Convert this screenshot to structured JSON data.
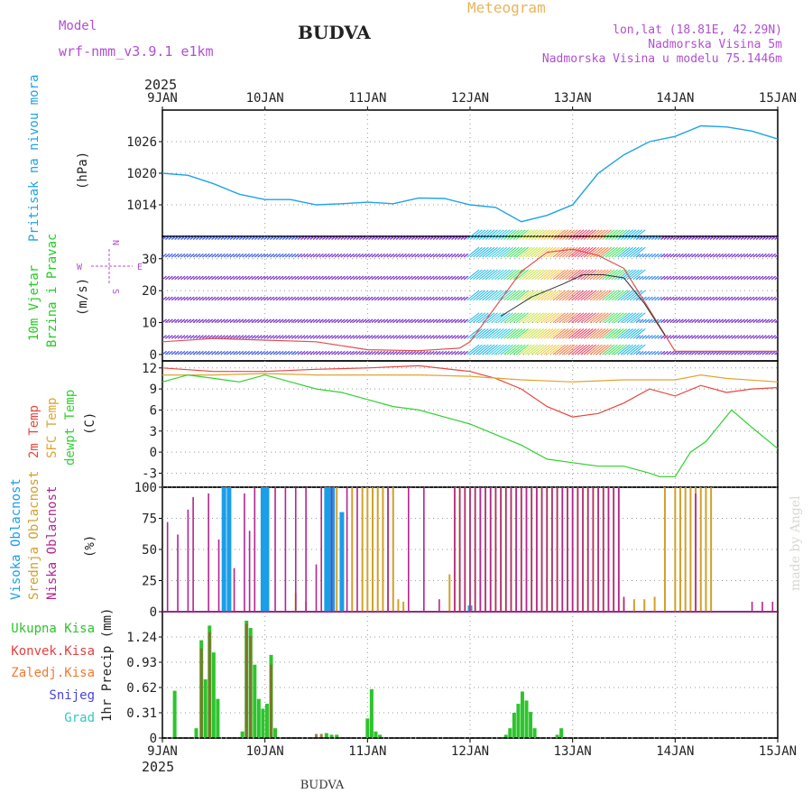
{
  "header": {
    "station": "BUDVA",
    "footer_station": "BUDVA",
    "product": "Meteogram",
    "model_label": "Model",
    "model_name": "wrf-nmm_v3.9.1 e1km",
    "coords": "lon,lat (18.81E, 42.29N)",
    "elevation": "Nadmorska Visina 5m",
    "model_elevation": "Nadmorska Visina u modelu 75.1446m",
    "watermark": "made by Angel",
    "year_top": "2025",
    "year_bottom": "2025"
  },
  "colors": {
    "pressure": "#1fa3e6",
    "temp2m": "#e8463c",
    "sfc": "#e0a431",
    "dewpt": "#2fd22f",
    "visoka": "#1a9ee8",
    "srednja": "#d2a02a",
    "niska": "#b3258f",
    "ukupna": "#2dc42d",
    "konvek": "#e34040",
    "zaledj": "#f07a30",
    "snijeg": "#4545dd",
    "grad": "#33c8c0",
    "model_text": "#b04fd0",
    "meteogram_text": "#e8b45a"
  },
  "chart_data": [
    {
      "id": "pressure",
      "type": "line",
      "ylabels": [
        "Pritisak na nivou mora",
        "(hPa)"
      ],
      "ylim": [
        1008,
        1032
      ],
      "yticks": [
        "1014",
        "1020",
        "1026"
      ],
      "xticks": [
        "9JAN",
        "10JAN",
        "11JAN",
        "12JAN",
        "13JAN",
        "14JAN",
        "15JAN"
      ],
      "x_days": [
        0,
        0.25,
        0.5,
        0.75,
        1.0,
        1.25,
        1.5,
        1.75,
        2.0,
        2.25,
        2.5,
        2.75,
        3.0,
        3.25,
        3.5,
        3.75,
        4.0,
        4.25,
        4.5,
        4.75,
        5.0,
        5.25,
        5.5,
        5.75,
        6.0
      ],
      "values": [
        1020,
        1019.6,
        1018,
        1016,
        1015,
        1015,
        1014,
        1014.2,
        1014.5,
        1014.2,
        1015.3,
        1015.2,
        1014,
        1013.5,
        1010.8,
        1012,
        1014,
        1020,
        1023.5,
        1026,
        1027,
        1029,
        1028.8,
        1028,
        1026.5
      ]
    },
    {
      "id": "wind",
      "type": "line",
      "ylabels": [
        "10m Vjetar",
        "Brzina i Pravac",
        "(m/s)"
      ],
      "compass": [
        "W",
        "E",
        "N",
        "S"
      ],
      "ylim": [
        -2,
        37
      ],
      "yticks": [
        "0",
        "10",
        "20",
        "30"
      ],
      "level_heights": [
        0,
        5,
        10,
        17,
        23.5,
        30.5,
        36
      ],
      "series": [
        {
          "name": "speed",
          "x_days": [
            0,
            0.5,
            1.0,
            1.5,
            2.0,
            2.5,
            2.9,
            3.0,
            3.25,
            3.5,
            3.75,
            4.0,
            4.25,
            4.5,
            4.75,
            5.0,
            5.5,
            6.0
          ],
          "values": [
            4,
            5,
            4.5,
            4,
            1.5,
            1.2,
            2,
            4,
            15,
            26,
            32,
            33,
            31,
            27,
            14,
            1,
            1,
            1
          ]
        },
        {
          "name": "gust",
          "x_days": [
            3.3,
            3.6,
            3.9,
            4.1,
            4.3,
            4.5,
            4.7,
            4.9
          ],
          "values": [
            12,
            18,
            22,
            25,
            25,
            24,
            16,
            6
          ]
        }
      ]
    },
    {
      "id": "temperature",
      "type": "line",
      "ylabels": [
        "2m Temp",
        "SFC Temp",
        "dewpt Temp",
        "(C)"
      ],
      "ylim": [
        -5,
        13
      ],
      "yticks": [
        "-3",
        "0",
        "3",
        "6",
        "9",
        "12"
      ],
      "series": [
        {
          "name": "2m Temp",
          "x_days": [
            0,
            0.5,
            1.0,
            1.5,
            2.0,
            2.5,
            3.0,
            3.25,
            3.5,
            3.75,
            4.0,
            4.25,
            4.5,
            4.75,
            5.0,
            5.25,
            5.5,
            5.75,
            6.0
          ],
          "values": [
            12,
            11.5,
            11.5,
            11.8,
            12,
            12.3,
            11.5,
            10.5,
            9,
            6.5,
            5,
            5.5,
            7,
            9,
            8,
            9.5,
            8.5,
            9,
            9.2
          ]
        },
        {
          "name": "SFC Temp",
          "x_days": [
            0,
            0.5,
            1.0,
            1.5,
            2.0,
            2.5,
            3.0,
            3.5,
            4.0,
            4.5,
            5.0,
            5.25,
            5.5,
            6.0
          ],
          "values": [
            11,
            11,
            11.2,
            11,
            11,
            11,
            10.8,
            10.3,
            10,
            10.3,
            10.3,
            11,
            10.5,
            10
          ]
        },
        {
          "name": "dewpt Temp",
          "x_days": [
            0,
            0.25,
            0.5,
            0.75,
            1.0,
            1.25,
            1.5,
            1.75,
            2.0,
            2.25,
            2.5,
            2.75,
            3.0,
            3.25,
            3.5,
            3.75,
            4.0,
            4.25,
            4.5,
            4.75,
            4.85,
            5.0,
            5.15,
            5.3,
            5.55,
            5.75,
            6.0
          ],
          "values": [
            10,
            11,
            10.5,
            10,
            11,
            10,
            9,
            8.5,
            7.5,
            6.5,
            6,
            5,
            4,
            2.5,
            1,
            -1,
            -1.5,
            -2,
            -2,
            -3,
            -3.5,
            -3.5,
            0,
            1.5,
            6,
            3.5,
            0.5
          ]
        }
      ]
    },
    {
      "id": "clouds",
      "type": "bar",
      "ylabels": [
        "Visoka Oblacnost",
        "Srednja Oblacnost",
        "Niska Oblacnost",
        "(%)"
      ],
      "ylim": [
        0,
        100
      ],
      "yticks": [
        "0",
        "25",
        "50",
        "75",
        "100"
      ],
      "series": [
        {
          "name": "Visoka Oblacnost",
          "x_days": [
            0.6,
            0.65,
            0.98,
            1.02,
            1.6,
            1.62,
            1.66,
            1.75,
            3.0
          ],
          "values": [
            100,
            100,
            100,
            100,
            100,
            100,
            100,
            80,
            5
          ]
        },
        {
          "name": "Srednja Oblacnost",
          "x_days": [
            1.3,
            1.4,
            1.7,
            1.85,
            1.95,
            2.0,
            2.05,
            2.1,
            2.15,
            2.2,
            2.25,
            2.3,
            2.35,
            2.8,
            2.85,
            2.9,
            2.95,
            3.0,
            3.05,
            3.1,
            3.15,
            3.2,
            3.25,
            3.3,
            3.35,
            3.4,
            3.45,
            3.5,
            3.55,
            3.6,
            3.65,
            3.7,
            3.75,
            3.8,
            3.85,
            3.9,
            3.95,
            4.0,
            4.05,
            4.1,
            4.15,
            4.2,
            4.25,
            4.3,
            4.35,
            4.4,
            4.45,
            4.5,
            4.6,
            4.7,
            4.8,
            4.9,
            5.0,
            5.05,
            5.1,
            5.15,
            5.2,
            5.25,
            5.3,
            5.35
          ],
          "values": [
            15,
            8,
            100,
            100,
            100,
            100,
            100,
            100,
            100,
            100,
            100,
            10,
            8,
            30,
            100,
            100,
            100,
            100,
            100,
            100,
            100,
            100,
            100,
            100,
            100,
            100,
            100,
            100,
            100,
            100,
            100,
            100,
            100,
            100,
            100,
            100,
            100,
            100,
            100,
            100,
            100,
            100,
            100,
            100,
            100,
            100,
            100,
            10,
            10,
            10,
            12,
            100,
            100,
            100,
            100,
            100,
            100,
            100,
            100,
            100
          ]
        },
        {
          "name": "Niska Oblacnost",
          "x_days": [
            0.05,
            0.15,
            0.25,
            0.3,
            0.45,
            0.55,
            0.7,
            0.8,
            0.85,
            0.9,
            1.1,
            1.2,
            1.3,
            1.4,
            1.5,
            1.55,
            1.65,
            1.8,
            1.9,
            2.2,
            2.4,
            2.55,
            2.7,
            2.85,
            2.9,
            2.95,
            3.0,
            3.05,
            3.1,
            3.15,
            3.2,
            3.25,
            3.3,
            3.35,
            3.4,
            3.45,
            3.5,
            3.55,
            3.6,
            3.65,
            3.7,
            3.75,
            3.8,
            3.85,
            3.9,
            3.95,
            4.0,
            4.05,
            4.1,
            4.15,
            4.2,
            4.25,
            4.3,
            4.35,
            4.4,
            4.45,
            4.5,
            5.2,
            5.75,
            5.85,
            5.95
          ],
          "values": [
            72,
            62,
            82,
            92,
            95,
            58,
            35,
            95,
            65,
            100,
            100,
            100,
            100,
            100,
            38,
            100,
            100,
            100,
            100,
            100,
            100,
            100,
            10,
            100,
            100,
            100,
            100,
            100,
            100,
            100,
            100,
            100,
            100,
            100,
            100,
            100,
            100,
            100,
            100,
            100,
            100,
            100,
            100,
            100,
            100,
            100,
            100,
            100,
            100,
            100,
            100,
            100,
            100,
            100,
            100,
            100,
            12,
            95,
            8,
            8,
            8
          ]
        }
      ]
    },
    {
      "id": "precip",
      "type": "bar",
      "ylabels": [
        "1hr Precip (mm)"
      ],
      "legend": [
        "Ukupna Kisa",
        "Konvek.Kisa",
        "Zaledj.Kisa",
        "Snijeg",
        "Grad"
      ],
      "ylim": [
        0,
        1.55
      ],
      "yticks": [
        "0",
        "0.31",
        "0.62",
        "0.93",
        "1.24"
      ],
      "xticks": [
        "9JAN",
        "10JAN",
        "11JAN",
        "12JAN",
        "13JAN",
        "14JAN",
        "15JAN"
      ],
      "series": [
        {
          "name": "Ukupna Kisa",
          "x_days": [
            0.12,
            0.33,
            0.38,
            0.42,
            0.46,
            0.5,
            0.54,
            0.78,
            0.82,
            0.86,
            0.9,
            0.94,
            0.98,
            1.02,
            1.06,
            1.1,
            1.6,
            1.65,
            1.7,
            2.0,
            2.04,
            2.08,
            2.12,
            3.35,
            3.39,
            3.43,
            3.47,
            3.51,
            3.55,
            3.59,
            3.63,
            3.85,
            3.89
          ],
          "values": [
            0.58,
            0.12,
            1.2,
            0.72,
            1.38,
            1.05,
            0.48,
            0.08,
            1.44,
            1.35,
            0.9,
            0.48,
            0.36,
            0.42,
            1.02,
            0.12,
            0.06,
            0.04,
            0.04,
            0.24,
            0.6,
            0.08,
            0.04,
            0.04,
            0.12,
            0.31,
            0.42,
            0.57,
            0.46,
            0.32,
            0.12,
            0.04,
            0.12
          ]
        },
        {
          "name": "Konvek.Kisa",
          "x_days": [
            0.38,
            0.46,
            0.82,
            0.86,
            1.06,
            1.5,
            1.55
          ],
          "values": [
            1.1,
            1.3,
            1.4,
            1.25,
            0.9,
            0.05,
            0.05
          ]
        }
      ]
    }
  ]
}
